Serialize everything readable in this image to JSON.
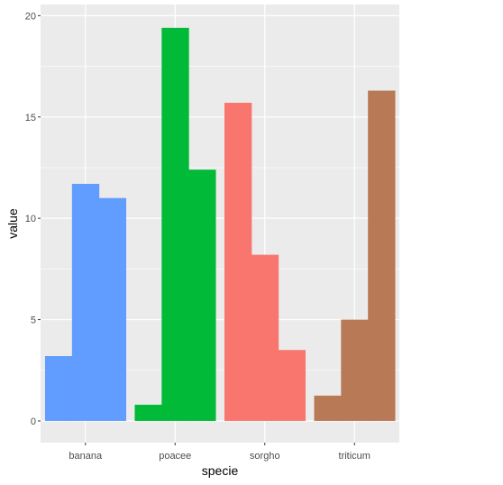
{
  "chart_data": {
    "type": "bar",
    "xlabel": "specie",
    "ylabel": "value",
    "ylim": [
      -1.07,
      20.55
    ],
    "yticks": [
      0,
      5,
      10,
      15,
      20
    ],
    "ytick_labels": [
      "0",
      "5",
      "10",
      "15",
      "20"
    ],
    "grid": true,
    "legend": "none",
    "categories": [
      "banana",
      "poacee",
      "sorgho",
      "triticum"
    ],
    "groups": [
      {
        "category": "banana",
        "color": "#619CFF",
        "values": [
          3.2,
          11.7,
          11.0
        ]
      },
      {
        "category": "poacee",
        "color": "#00BA38",
        "values": [
          0.8,
          19.4,
          12.4
        ]
      },
      {
        "category": "sorgho",
        "color": "#F8766D",
        "values": [
          15.7,
          8.2,
          3.5
        ]
      },
      {
        "category": "triticum",
        "color": "#B87A56",
        "values": [
          1.25,
          5.0,
          16.3
        ]
      }
    ]
  }
}
